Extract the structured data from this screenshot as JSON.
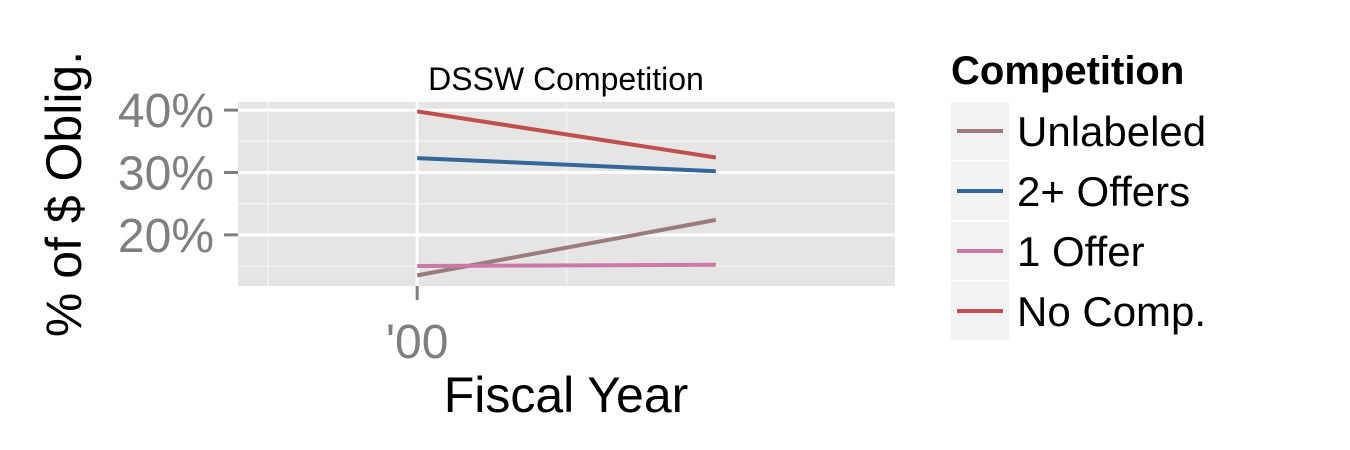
{
  "chart_data": {
    "type": "line",
    "title": "DSSW Competition",
    "xlabel": "Fiscal Year",
    "ylabel": "% of $ Oblig.",
    "x": [
      2000,
      2001
    ],
    "x_tick_values": [
      2000
    ],
    "x_tick_labels": [
      "'00"
    ],
    "xlim": [
      1999.4,
      2001.6
    ],
    "y_ticks": [
      20,
      30,
      40
    ],
    "y_tick_labels": [
      "20%",
      "30%",
      "40%"
    ],
    "ylim": [
      11.8,
      41.3
    ],
    "grid": true,
    "legend_position": "right",
    "legend_title": "Competition",
    "series": [
      {
        "name": "Unlabeled",
        "color": "#9B7B7B",
        "values": [
          13.5,
          22.4
        ]
      },
      {
        "name": "2+ Offers",
        "color": "#336699",
        "values": [
          32.3,
          30.2
        ]
      },
      {
        "name": "1 Offer",
        "color": "#CC79A7",
        "values": [
          15.0,
          15.2
        ]
      },
      {
        "name": "No Comp.",
        "color": "#C0504D",
        "values": [
          39.8,
          32.4
        ]
      }
    ]
  }
}
